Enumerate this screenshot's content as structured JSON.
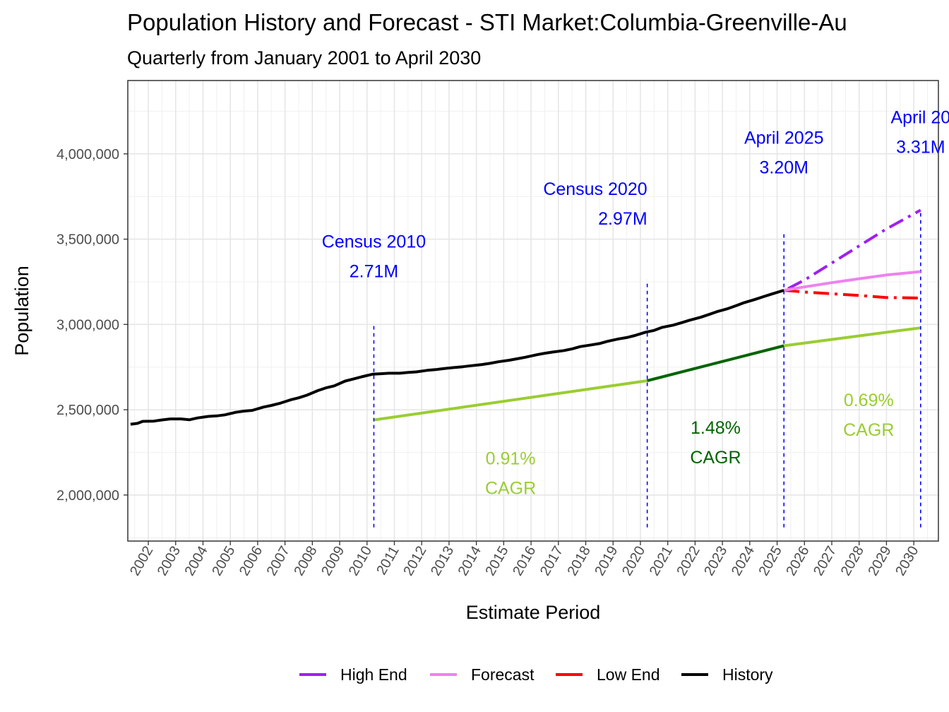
{
  "chart_data": {
    "type": "line",
    "title": "Population History and Forecast - STI Market:Columbia-Greenville-Au",
    "subtitle": "Quarterly from January 2001 to April 2030",
    "xlabel": "Estimate Period",
    "ylabel": "Population",
    "xlim": [
      2001.25,
      2030.9
    ],
    "ylim": [
      1730000,
      4430000
    ],
    "x_ticks": [
      "2002",
      "2003",
      "2004",
      "2005",
      "2006",
      "2007",
      "2008",
      "2009",
      "2010",
      "2011",
      "2012",
      "2013",
      "2014",
      "2015",
      "2016",
      "2017",
      "2018",
      "2019",
      "2020",
      "2021",
      "2022",
      "2023",
      "2024",
      "2025",
      "2026",
      "2027",
      "2028",
      "2029",
      "2030"
    ],
    "y_ticks": [
      {
        "value": 2000000,
        "label": "2,000,000"
      },
      {
        "value": 2500000,
        "label": "2,500,000"
      },
      {
        "value": 3000000,
        "label": "3,000,000"
      },
      {
        "value": 3500000,
        "label": "3,500,000"
      },
      {
        "value": 4000000,
        "label": "4,000,000"
      }
    ],
    "grid": true,
    "legend_position": "bottom",
    "series": [
      {
        "name": "History",
        "color": "#000000",
        "style": "solid",
        "points": [
          [
            2001.35,
            2415000
          ],
          [
            2001.6,
            2420000
          ],
          [
            2001.8,
            2432000
          ],
          [
            2002.2,
            2433000
          ],
          [
            2002.5,
            2440000
          ],
          [
            2002.8,
            2446000
          ],
          [
            2003.2,
            2446000
          ],
          [
            2003.5,
            2441000
          ],
          [
            2003.8,
            2452000
          ],
          [
            2004.2,
            2461000
          ],
          [
            2004.5,
            2464000
          ],
          [
            2004.8,
            2470000
          ],
          [
            2005.2,
            2485000
          ],
          [
            2005.5,
            2492000
          ],
          [
            2005.8,
            2496000
          ],
          [
            2006.2,
            2515000
          ],
          [
            2006.5,
            2525000
          ],
          [
            2006.8,
            2537000
          ],
          [
            2007.2,
            2558000
          ],
          [
            2007.5,
            2570000
          ],
          [
            2007.8,
            2585000
          ],
          [
            2008.2,
            2612000
          ],
          [
            2008.5,
            2628000
          ],
          [
            2008.8,
            2640000
          ],
          [
            2009.2,
            2668000
          ],
          [
            2009.5,
            2680000
          ],
          [
            2009.8,
            2693000
          ],
          [
            2010.2,
            2708000
          ],
          [
            2010.5,
            2711000
          ],
          [
            2010.8,
            2714000
          ],
          [
            2011.2,
            2714000
          ],
          [
            2011.5,
            2719000
          ],
          [
            2011.8,
            2722000
          ],
          [
            2012.2,
            2731000
          ],
          [
            2012.5,
            2735000
          ],
          [
            2012.8,
            2741000
          ],
          [
            2013.2,
            2748000
          ],
          [
            2013.5,
            2752000
          ],
          [
            2013.8,
            2758000
          ],
          [
            2014.2,
            2765000
          ],
          [
            2014.5,
            2772000
          ],
          [
            2014.8,
            2781000
          ],
          [
            2015.2,
            2790000
          ],
          [
            2015.5,
            2799000
          ],
          [
            2015.8,
            2808000
          ],
          [
            2016.2,
            2822000
          ],
          [
            2016.5,
            2831000
          ],
          [
            2016.8,
            2838000
          ],
          [
            2017.2,
            2847000
          ],
          [
            2017.5,
            2857000
          ],
          [
            2017.8,
            2870000
          ],
          [
            2018.2,
            2880000
          ],
          [
            2018.5,
            2888000
          ],
          [
            2018.8,
            2901000
          ],
          [
            2019.2,
            2915000
          ],
          [
            2019.5,
            2923000
          ],
          [
            2019.8,
            2935000
          ],
          [
            2020.2,
            2955000
          ],
          [
            2020.5,
            2965000
          ],
          [
            2020.8,
            2983000
          ],
          [
            2021.2,
            2996000
          ],
          [
            2021.5,
            3010000
          ],
          [
            2021.8,
            3025000
          ],
          [
            2022.2,
            3042000
          ],
          [
            2022.5,
            3058000
          ],
          [
            2022.8,
            3075000
          ],
          [
            2023.2,
            3093000
          ],
          [
            2023.5,
            3110000
          ],
          [
            2023.8,
            3128000
          ],
          [
            2024.2,
            3147000
          ],
          [
            2024.5,
            3163000
          ],
          [
            2024.8,
            3178000
          ],
          [
            2025.25,
            3200000
          ]
        ]
      },
      {
        "name": "Forecast",
        "color": "#ee82ee",
        "style": "solid",
        "points": [
          [
            2025.25,
            3200000
          ],
          [
            2026,
            3220000
          ],
          [
            2027,
            3245000
          ],
          [
            2028,
            3268000
          ],
          [
            2029,
            3290000
          ],
          [
            2030.25,
            3310000
          ]
        ]
      },
      {
        "name": "High End",
        "color": "#a020f0",
        "style": "dashdot",
        "points": [
          [
            2025.4,
            3210000
          ],
          [
            2026,
            3260000
          ],
          [
            2027,
            3360000
          ],
          [
            2028,
            3460000
          ],
          [
            2029,
            3560000
          ],
          [
            2030.25,
            3670000
          ]
        ]
      },
      {
        "name": "Low End",
        "color": "#ff0000",
        "style": "dashdot",
        "points": [
          [
            2025.25,
            3200000
          ],
          [
            2026,
            3190000
          ],
          [
            2027,
            3180000
          ],
          [
            2028,
            3170000
          ],
          [
            2029,
            3158000
          ],
          [
            2030.25,
            3155000
          ]
        ]
      }
    ],
    "cagr_segments": [
      {
        "color": "#9acd32",
        "points": [
          [
            2010.25,
            2440000
          ],
          [
            2020.25,
            2670000
          ]
        ]
      },
      {
        "color": "#006400",
        "points": [
          [
            2020.25,
            2670000
          ],
          [
            2025.25,
            2875000
          ]
        ]
      },
      {
        "color": "#9acd32",
        "points": [
          [
            2025.25,
            2875000
          ],
          [
            2030.25,
            2980000
          ]
        ]
      }
    ],
    "vlines": [
      {
        "x": 2010.25,
        "y0": 1810000,
        "y1": 3000000
      },
      {
        "x": 2020.25,
        "y0": 1810000,
        "y1": 3260000
      },
      {
        "x": 2025.25,
        "y0": 1810000,
        "y1": 3530000
      },
      {
        "x": 2030.25,
        "y0": 1810000,
        "y1": 3660000
      }
    ],
    "annotations": [
      {
        "line1": "Census 2010",
        "line2": "2.71M",
        "x": 2010.25,
        "y": 3450000,
        "color": "#0000ff",
        "anchor": "middle"
      },
      {
        "line1": "Census 2020",
        "line2": "2.97M",
        "x": 2020.25,
        "y": 3760000,
        "color": "#0000ff",
        "anchor": "end"
      },
      {
        "line1": "April 2025",
        "line2": "3.20M",
        "x": 2025.25,
        "y": 4060000,
        "color": "#0000ff",
        "anchor": "middle"
      },
      {
        "line1": "April 20",
        "line2": "3.31M",
        "x": 2030.25,
        "y": 4180000,
        "color": "#0000ff",
        "anchor": "middle"
      },
      {
        "line1": "0.91%",
        "line2": "CAGR",
        "x": 2015.25,
        "y": 2180000,
        "color": "#9acd32",
        "anchor": "middle"
      },
      {
        "line1": "1.48%",
        "line2": "CAGR",
        "x": 2022.75,
        "y": 2360000,
        "color": "#006400",
        "anchor": "middle"
      },
      {
        "line1": "0.69%",
        "line2": "CAGR",
        "x": 2028.35,
        "y": 2520000,
        "color": "#9acd32",
        "anchor": "middle"
      }
    ]
  },
  "legend": [
    {
      "label": "High End",
      "color": "#a020f0"
    },
    {
      "label": "Forecast",
      "color": "#ee82ee"
    },
    {
      "label": "Low End",
      "color": "#ff0000"
    },
    {
      "label": "History",
      "color": "#000000"
    }
  ]
}
